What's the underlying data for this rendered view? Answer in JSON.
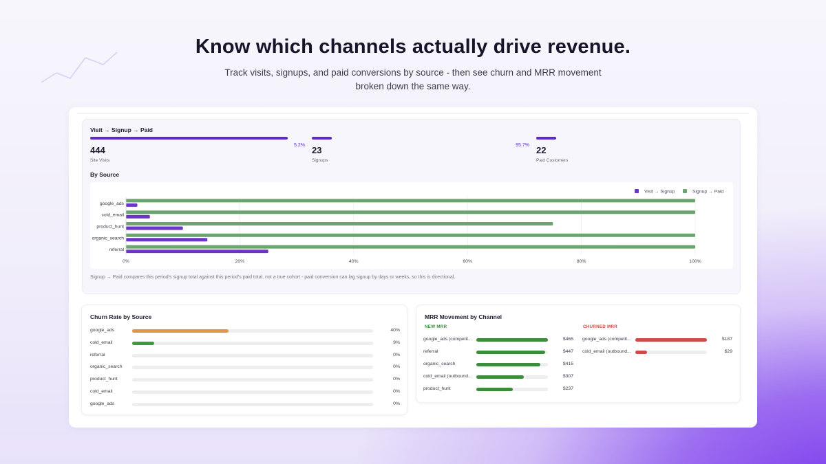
{
  "hero": {
    "title": "Know which channels actually drive revenue.",
    "subtitle_line1": "Track visits, signups, and paid conversions by source - then see churn and MRR movement",
    "subtitle_line2": "broken down the same way."
  },
  "funnel": {
    "title": "Visit → Signup → Paid",
    "stages": [
      {
        "value": "444",
        "label": "Site Visits",
        "bar_fraction": 0.88
      },
      {
        "value": "23",
        "label": "Signups",
        "bar_fraction": 0.09,
        "conversion": "5.2%"
      },
      {
        "value": "22",
        "label": "Paid Customers",
        "bar_fraction": 0.09,
        "conversion": "95.7%"
      }
    ]
  },
  "by_source": {
    "title": "By Source",
    "note": "Signup → Paid compares this period's signup total against this period's paid total, not a true cohort - paid conversion can lag signup by days or weeks, so this is directional."
  },
  "chart_data": {
    "type": "bar",
    "orientation": "horizontal",
    "categories": [
      "google_ads",
      "cold_email",
      "product_hunt",
      "organic_search",
      "referral"
    ],
    "series": [
      {
        "name": "Visit → Signup",
        "color": "#6b35c9",
        "values": [
          2,
          4.2,
          10,
          14.3,
          25
        ]
      },
      {
        "name": "Signup → Paid",
        "color": "#6aa46e",
        "values": [
          100,
          100,
          75,
          100,
          100
        ]
      }
    ],
    "xlim": [
      0,
      100
    ],
    "x_ticks": [
      "0%",
      "20%",
      "40%",
      "60%",
      "80%",
      "100%"
    ],
    "legend_position": "top-right",
    "grid": true
  },
  "churn": {
    "title": "Churn Rate by Source",
    "rows": [
      {
        "label": "google_ads",
        "value": "40%",
        "fraction": 0.4,
        "color": "#e0954a"
      },
      {
        "label": "cold_email",
        "value": "9%",
        "fraction": 0.09,
        "color": "#3d9a3d"
      },
      {
        "label": "referral",
        "value": "0%",
        "fraction": 0,
        "color": "#3d9a3d"
      },
      {
        "label": "organic_search",
        "value": "0%",
        "fraction": 0,
        "color": "#3d9a3d"
      },
      {
        "label": "product_hunt",
        "value": "0%",
        "fraction": 0,
        "color": "#3d9a3d"
      },
      {
        "label": "cold_email",
        "value": "0%",
        "fraction": 0,
        "color": "#3d9a3d"
      },
      {
        "label": "google_ads",
        "value": "0%",
        "fraction": 0,
        "color": "#3d9a3d"
      }
    ]
  },
  "mrr": {
    "title": "MRR Movement by Channel",
    "new_header": "NEW MRR",
    "churned_header": "CHURNED MRR",
    "new_color": "#3d8b3d",
    "churned_color": "#cc4a4a",
    "new_rows": [
      {
        "label": "google_ads (competit...",
        "value": "$465",
        "fraction": 1.0
      },
      {
        "label": "referral",
        "value": "$447",
        "fraction": 0.96
      },
      {
        "label": "organic_search",
        "value": "$415",
        "fraction": 0.89
      },
      {
        "label": "cold_email (outbound...",
        "value": "$307",
        "fraction": 0.66
      },
      {
        "label": "product_hunt",
        "value": "$237",
        "fraction": 0.51
      }
    ],
    "churned_rows": [
      {
        "label": "google_ads (competit...",
        "value": "$187",
        "fraction": 1.0
      },
      {
        "label": "cold_email (outbound...",
        "value": "$29",
        "fraction": 0.16
      }
    ]
  }
}
